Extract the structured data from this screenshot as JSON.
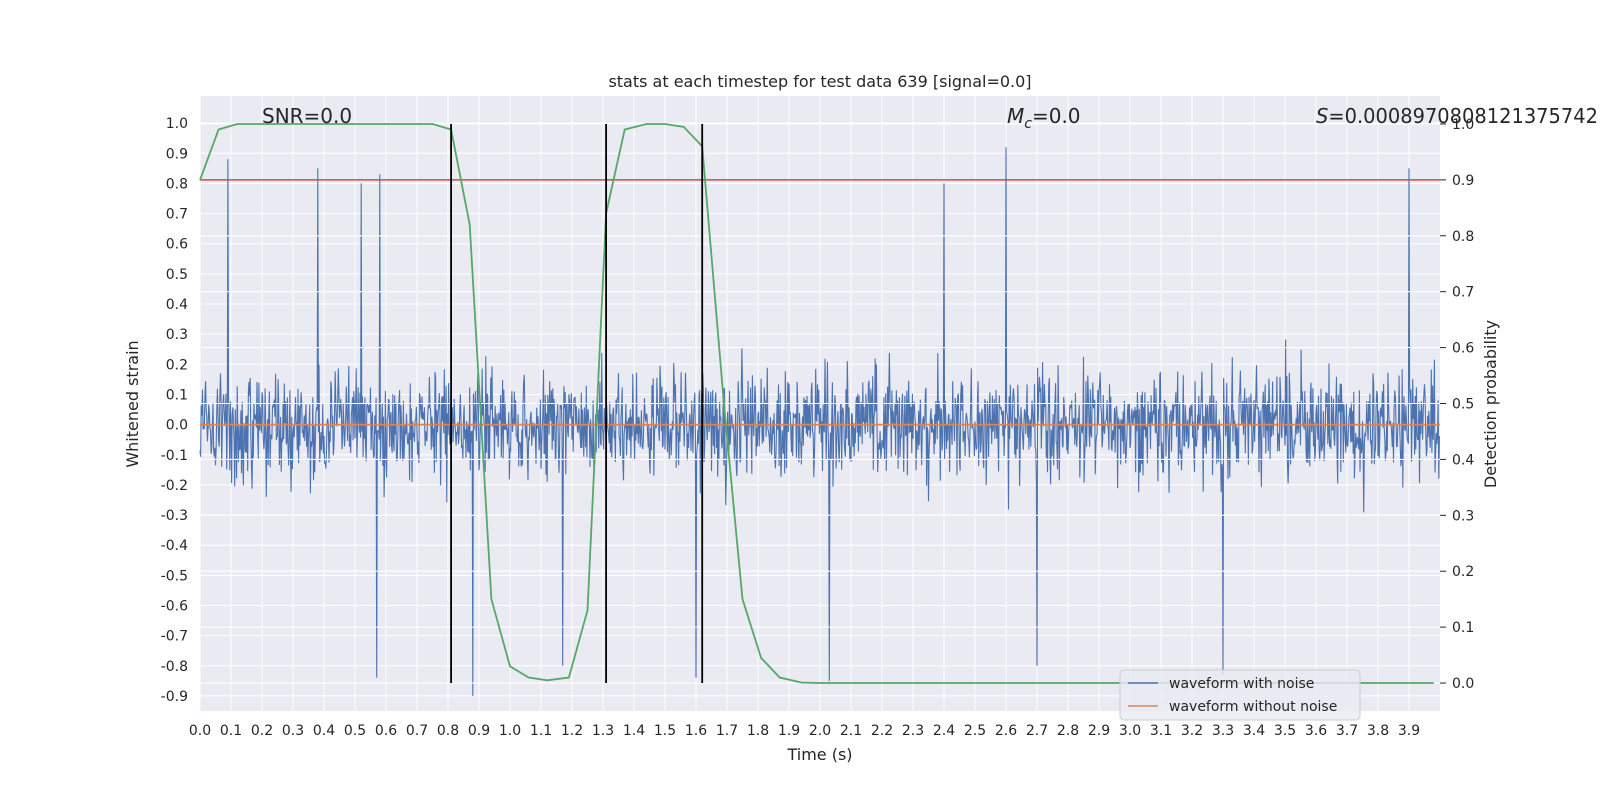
{
  "chart_data": {
    "type": "line",
    "title": "stats at each timestep for test data 639 [signal=0.0]",
    "xlabel": "Time (s)",
    "ylabel": "Whitened strain",
    "y2label": "Detection probability",
    "xlim": [
      0.0,
      4.0
    ],
    "ylim": [
      -0.95,
      1.09
    ],
    "y2lim": [
      -0.05,
      1.05
    ],
    "xticks": [
      "0.0",
      "0.1",
      "0.2",
      "0.3",
      "0.4",
      "0.5",
      "0.6",
      "0.7",
      "0.8",
      "0.9",
      "1.0",
      "1.1",
      "1.2",
      "1.3",
      "1.4",
      "1.5",
      "1.6",
      "1.7",
      "1.8",
      "1.9",
      "2.0",
      "2.1",
      "2.2",
      "2.3",
      "2.4",
      "2.5",
      "2.6",
      "2.7",
      "2.8",
      "2.9",
      "3.0",
      "3.1",
      "3.2",
      "3.3",
      "3.4",
      "3.5",
      "3.6",
      "3.7",
      "3.8",
      "3.9"
    ],
    "yticks": [
      "1.0",
      "0.9",
      "0.8",
      "0.7",
      "0.6",
      "0.5",
      "0.4",
      "0.3",
      "0.2",
      "0.1",
      "0.0",
      "-0.1",
      "-0.2",
      "-0.3",
      "-0.4",
      "-0.5",
      "-0.6",
      "-0.7",
      "-0.8",
      "-0.9"
    ],
    "y2ticks": [
      "1.0",
      "0.9",
      "0.8",
      "0.7",
      "0.6",
      "0.5",
      "0.4",
      "0.3",
      "0.2",
      "0.1",
      "0.0"
    ],
    "annotations": {
      "snr": "SNR=0.0",
      "mc_symbol": "M",
      "mc_sub": "c",
      "mc_value": "=0.0",
      "s_symbol": "S",
      "s_value": "=0.0008970808121375742"
    },
    "threshold": 0.9,
    "vlines": [
      0.81,
      1.31,
      1.62
    ],
    "series": [
      {
        "name": "waveform with noise",
        "color": "#4c72b0",
        "axis": "left",
        "description": "dense random whitened-strain noise, roughly within -0.85..1.0",
        "spikes": [
          {
            "x": 0.09,
            "y": 0.88
          },
          {
            "x": 0.38,
            "y": 0.85
          },
          {
            "x": 0.58,
            "y": 0.83
          },
          {
            "x": 1.6,
            "y": 1.0
          },
          {
            "x": 2.6,
            "y": 0.92
          },
          {
            "x": 3.9,
            "y": 0.85
          },
          {
            "x": 2.4,
            "y": 0.8
          },
          {
            "x": 0.52,
            "y": 0.8
          },
          {
            "x": 3.3,
            "y": -0.83
          },
          {
            "x": 2.03,
            "y": -0.85
          },
          {
            "x": 0.57,
            "y": -0.84
          },
          {
            "x": 0.88,
            "y": -0.9
          },
          {
            "x": 1.6,
            "y": -0.84
          },
          {
            "x": 2.7,
            "y": -0.8
          },
          {
            "x": 1.17,
            "y": -0.8
          }
        ]
      },
      {
        "name": "waveform without noise",
        "color": "#dd8452",
        "axis": "left",
        "x": [
          0.0,
          4.0
        ],
        "y": [
          0.0,
          0.0
        ]
      },
      {
        "name": "detection probability",
        "color": "#55a868",
        "axis": "right",
        "x": [
          0.0,
          0.06,
          0.12,
          0.19,
          0.25,
          0.31,
          0.37,
          0.44,
          0.5,
          0.56,
          0.62,
          0.69,
          0.75,
          0.81,
          0.87,
          0.94,
          1.0,
          1.06,
          1.12,
          1.19,
          1.25,
          1.31,
          1.37,
          1.44,
          1.5,
          1.56,
          1.62,
          1.69,
          1.75,
          1.81,
          1.87,
          1.94,
          2.0,
          2.5,
          3.0,
          3.5,
          3.98
        ],
        "y": [
          0.9,
          0.99,
          1.0,
          1.0,
          1.0,
          1.0,
          1.0,
          1.0,
          1.0,
          1.0,
          1.0,
          1.0,
          1.0,
          0.99,
          0.82,
          0.15,
          0.03,
          0.01,
          0.005,
          0.01,
          0.13,
          0.84,
          0.99,
          1.0,
          1.0,
          0.995,
          0.96,
          0.5,
          0.15,
          0.045,
          0.01,
          0.001,
          0.0,
          0.0,
          0.0,
          0.0,
          0.0
        ]
      },
      {
        "name": "threshold",
        "color": "#c44e52",
        "axis": "right",
        "x": [
          0.0,
          4.0
        ],
        "y": [
          0.9,
          0.9
        ]
      }
    ],
    "legend": {
      "position": "lower-right",
      "entries": [
        {
          "label": "waveform with noise",
          "color": "#4c72b0"
        },
        {
          "label": "waveform without noise",
          "color": "#dd8452"
        }
      ]
    },
    "grid": true
  }
}
